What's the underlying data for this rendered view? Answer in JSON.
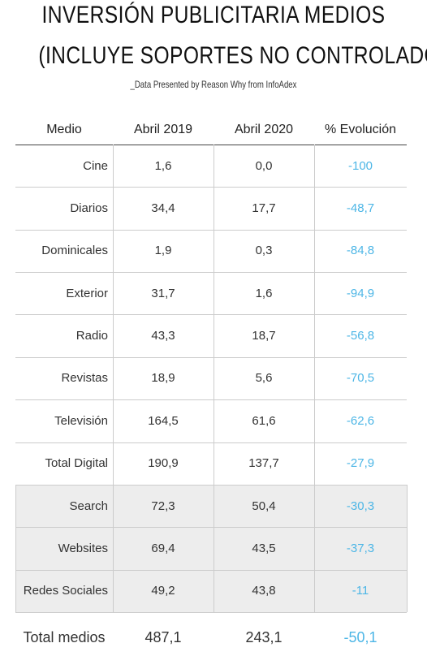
{
  "header": {
    "title_lines": [
      "INVERSIÓN PUBLICITARIA MEDIOS",
      "(INCLUYE SOPORTES NO CONTROLADOS)"
    ],
    "subtitle": "_Data Presented by Reason Why from InfoAdex"
  },
  "table": {
    "columns": [
      "Medio",
      "Abril 2019",
      "Abril 2020",
      "% Evolución"
    ],
    "rows": [
      [
        "Cine",
        "1,6",
        "0,0",
        "-100"
      ],
      [
        "Diarios",
        "34,4",
        "17,7",
        "-48,7"
      ],
      [
        "Dominicales",
        "1,9",
        "0,3",
        "-84,8"
      ],
      [
        "Exterior",
        "31,7",
        "1,6",
        "-94,9"
      ],
      [
        "Radio",
        "43,3",
        "18,7",
        "-56,8"
      ],
      [
        "Revistas",
        "18,9",
        "5,6",
        "-70,5"
      ],
      [
        "Televisión",
        "164,5",
        "61,6",
        "-62,6"
      ],
      [
        "Total Digital",
        "190,9",
        "137,7",
        "-27,9"
      ]
    ],
    "digital_rows": [
      [
        "Search",
        "72,3",
        "50,4",
        "-30,3"
      ],
      [
        "Websites",
        "69,4",
        "43,5",
        "-37,3"
      ],
      [
        "Redes Sociales",
        "49,2",
        "43,8",
        "-11"
      ]
    ],
    "total": [
      "Total medios",
      "487,1",
      "243,1",
      "-50,1"
    ]
  }
}
